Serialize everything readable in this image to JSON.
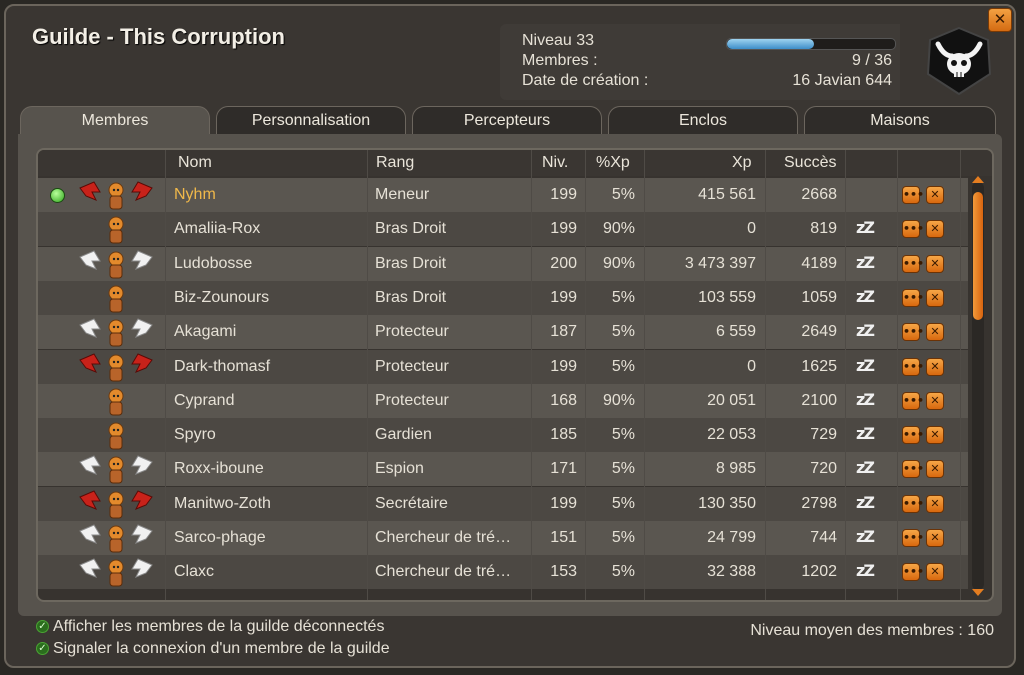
{
  "window": {
    "title": "Guilde - This Corruption",
    "close_label": "✕"
  },
  "guild_info": {
    "level_label": "Niveau 33",
    "level_progress": 0.52,
    "members_label": "Membres :",
    "members_value": "9 / 36",
    "created_label": "Date de création :",
    "created_value": "16 Javian 644",
    "emblem_icon": "skull-horns-emblem-icon"
  },
  "tabs": [
    {
      "label": "Membres",
      "active": true
    },
    {
      "label": "Personnalisation",
      "active": false
    },
    {
      "label": "Percepteurs",
      "active": false
    },
    {
      "label": "Enclos",
      "active": false
    },
    {
      "label": "Maisons",
      "active": false
    }
  ],
  "table": {
    "columns": [
      "Nom",
      "Rang",
      "Niv.",
      "%Xp",
      "Xp",
      "Succès"
    ],
    "rows": [
      {
        "name": "Nyhm",
        "rank": "Meneur",
        "level": "199",
        "xp_pct": "5%",
        "xp": "415 561",
        "success": "2668",
        "online": true,
        "wings": "red",
        "away": false
      },
      {
        "name": "Amaliia-Rox",
        "rank": "Bras Droit",
        "level": "199",
        "xp_pct": "90%",
        "xp": "0",
        "success": "819",
        "online": false,
        "wings": "none",
        "away": true
      },
      {
        "name": "Ludobosse",
        "rank": "Bras Droit",
        "level": "200",
        "xp_pct": "90%",
        "xp": "3 473 397",
        "success": "4189",
        "online": false,
        "wings": "white",
        "away": true
      },
      {
        "name": "Biz-Zounours",
        "rank": "Bras Droit",
        "level": "199",
        "xp_pct": "5%",
        "xp": "103 559",
        "success": "1059",
        "online": false,
        "wings": "none",
        "away": true
      },
      {
        "name": "Akagami",
        "rank": "Protecteur",
        "level": "187",
        "xp_pct": "5%",
        "xp": "6 559",
        "success": "2649",
        "online": false,
        "wings": "white",
        "away": true
      },
      {
        "name": "Dark-thomasf",
        "rank": "Protecteur",
        "level": "199",
        "xp_pct": "5%",
        "xp": "0",
        "success": "1625",
        "online": false,
        "wings": "red",
        "away": true
      },
      {
        "name": "Cyprand",
        "rank": "Protecteur",
        "level": "168",
        "xp_pct": "90%",
        "xp": "20 051",
        "success": "2100",
        "online": false,
        "wings": "none",
        "away": true
      },
      {
        "name": "Spyro",
        "rank": "Gardien",
        "level": "185",
        "xp_pct": "5%",
        "xp": "22 053",
        "success": "729",
        "online": false,
        "wings": "none",
        "away": true
      },
      {
        "name": "Roxx-iboune",
        "rank": "Espion",
        "level": "171",
        "xp_pct": "5%",
        "xp": "8 985",
        "success": "720",
        "online": false,
        "wings": "white",
        "away": true
      },
      {
        "name": "Manitwo-Zoth",
        "rank": "Secrétaire",
        "level": "199",
        "xp_pct": "5%",
        "xp": "130 350",
        "success": "2798",
        "online": false,
        "wings": "red",
        "away": true
      },
      {
        "name": "Sarco-phage",
        "rank": "Chercheur de tré…",
        "level": "151",
        "xp_pct": "5%",
        "xp": "24 799",
        "success": "744",
        "online": false,
        "wings": "white",
        "away": true
      },
      {
        "name": "Claxc",
        "rank": "Chercheur de tré…",
        "level": "153",
        "xp_pct": "5%",
        "xp": "32 388",
        "success": "1202",
        "online": false,
        "wings": "white",
        "away": true
      }
    ],
    "away_label": "zZ",
    "menu_label": "•••",
    "remove_label": "✕"
  },
  "options": {
    "show_offline": "Afficher les membres de la guilde déconnectés",
    "notify_login": "Signaler la connexion d'un membre de la guilde",
    "check_glyph": "✓"
  },
  "average_level": "Niveau moyen des membres : 160",
  "colors": {
    "leader_name": "#f0b84a",
    "accent": "#e47d20",
    "online": "#2fa51c"
  }
}
